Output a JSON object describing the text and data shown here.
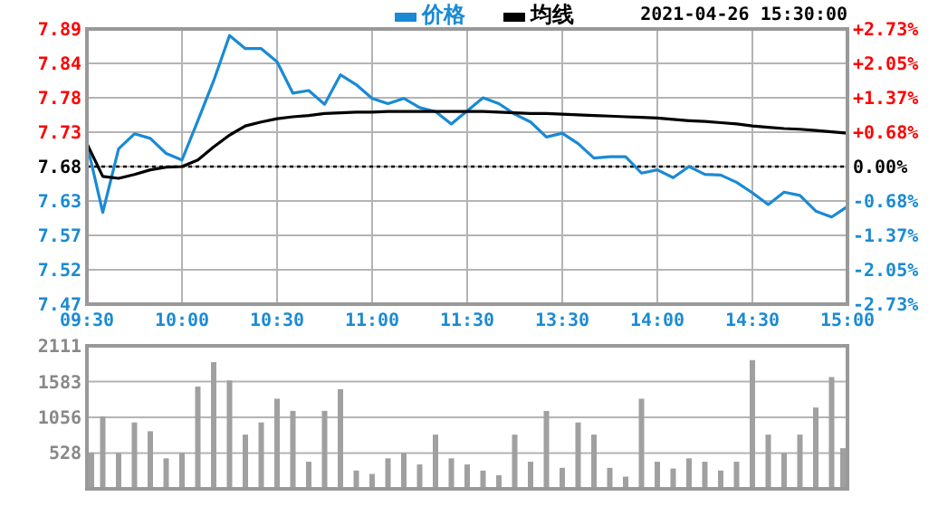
{
  "chart_data": [
    {
      "type": "line",
      "legend": "top",
      "grid": true,
      "annotations": [
        "2021-04-26 15:30:00"
      ],
      "categories": [
        "09:30",
        null,
        null,
        null,
        null,
        null,
        "10:00",
        null,
        null,
        null,
        null,
        null,
        "10:30",
        null,
        null,
        null,
        null,
        null,
        "11:00",
        null,
        null,
        null,
        null,
        null,
        "11:30",
        null,
        null,
        null,
        null,
        null,
        "13:30",
        null,
        null,
        null,
        null,
        null,
        "14:00",
        null,
        null,
        null,
        null,
        null,
        "14:30",
        null,
        null,
        null,
        null,
        null,
        "15:00"
      ],
      "ylim": [
        7.47,
        7.89
      ],
      "yticks": [
        7.47,
        {
          "value": 7.5225,
          "label": "7.52"
        },
        {
          "value": 7.575,
          "label": "7.57"
        },
        {
          "value": 7.6275,
          "label": "7.63"
        },
        7.68,
        {
          "value": 7.7325,
          "label": "7.73"
        },
        {
          "value": 7.785,
          "label": "7.78"
        },
        {
          "value": 7.8375,
          "label": "7.84"
        },
        7.89
      ],
      "y2lim": [
        -2.73,
        2.73
      ],
      "y2ticks": [
        {
          "value": -2.73,
          "label": "-2.73%"
        },
        {
          "value": -2.05,
          "label": "-2.05%"
        },
        {
          "value": -1.37,
          "label": "-1.37%"
        },
        {
          "value": -0.68,
          "label": "-0.68%"
        },
        {
          "value": 0,
          "label": "0.00%"
        },
        {
          "value": 0.68,
          "label": "+0.68%"
        },
        {
          "value": 1.37,
          "label": "+1.37%"
        },
        {
          "value": 2.05,
          "label": "+2.05%"
        },
        {
          "value": 2.73,
          "label": "+2.73%"
        }
      ],
      "ref_lines": [
        {
          "axis": "y",
          "value": 7.68,
          "color": "#000000",
          "line_style": "dotted"
        }
      ],
      "series": [
        {
          "name": "价格",
          "color": "#1a8ad4",
          "values": [
            7.715,
            7.61,
            7.707,
            7.73,
            7.723,
            7.7,
            7.69,
            7.75,
            7.811,
            7.88,
            7.86,
            7.86,
            7.84,
            7.792,
            7.796,
            7.775,
            7.82,
            7.805,
            7.784,
            7.776,
            7.784,
            7.77,
            7.764,
            7.745,
            7.765,
            7.785,
            7.776,
            7.76,
            7.748,
            7.725,
            7.731,
            7.715,
            7.693,
            7.695,
            7.695,
            7.67,
            7.675,
            7.663,
            7.68,
            7.668,
            7.667,
            7.656,
            7.64,
            7.622,
            7.641,
            7.636,
            7.612,
            7.603,
            7.619
          ]
        },
        {
          "name": "均线",
          "color": "#000000",
          "values": [
            7.715,
            7.665,
            7.662,
            7.668,
            7.675,
            7.679,
            7.68,
            7.69,
            7.71,
            7.728,
            7.742,
            7.748,
            7.753,
            7.756,
            7.758,
            7.761,
            7.762,
            7.763,
            7.763,
            7.764,
            7.764,
            7.764,
            7.764,
            7.764,
            7.764,
            7.764,
            7.763,
            7.762,
            7.761,
            7.761,
            7.76,
            7.759,
            7.758,
            7.757,
            7.756,
            7.755,
            7.754,
            7.752,
            7.75,
            7.749,
            7.747,
            7.745,
            7.742,
            7.74,
            7.738,
            7.737,
            7.735,
            7.733,
            7.731
          ]
        }
      ]
    },
    {
      "type": "bar",
      "grid": "y",
      "tick_labels": "y",
      "categories": [
        null,
        null,
        null,
        null,
        null,
        null,
        null,
        null,
        null,
        null,
        null,
        null,
        null,
        null,
        null,
        null,
        null,
        null,
        null,
        null,
        null,
        null,
        null,
        null,
        null,
        null,
        null,
        null,
        null,
        null,
        null,
        null,
        null,
        null,
        null,
        null,
        null,
        null,
        null,
        null,
        null,
        null,
        null,
        null,
        null,
        null,
        null,
        null,
        null
      ],
      "ylim": [
        0,
        2111
      ],
      "yticks": [
        {
          "value": 0,
          "label": null
        },
        528,
        1056,
        1583,
        2111
      ],
      "series": [
        {
          "color": "#a0a0a0",
          "values": [
            530,
            1070,
            530,
            980,
            850,
            450,
            530,
            1510,
            1870,
            1600,
            800,
            980,
            1330,
            1150,
            400,
            1150,
            1470,
            270,
            220,
            450,
            530,
            360,
            800,
            450,
            360,
            270,
            200,
            800,
            400,
            1150,
            310,
            980,
            800,
            310,
            180,
            1330,
            400,
            300,
            450,
            400,
            270,
            400,
            1900,
            800,
            530,
            800,
            1200,
            1650,
            600
          ]
        }
      ]
    }
  ]
}
